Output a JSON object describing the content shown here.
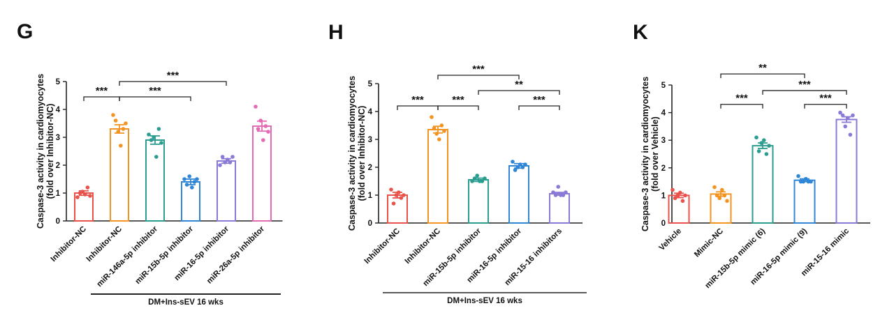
{
  "chart_data": [
    {
      "type": "bar",
      "panel": "G",
      "ylabel": [
        "Caspase-3 activity in cardiomyocytes",
        "(fold over Inhibitor-NC)"
      ],
      "ylim": [
        0,
        5
      ],
      "yticks": [
        "0",
        "1",
        "2",
        "3",
        "4",
        "5"
      ],
      "categories": [
        "Inhibitor-NC",
        "Inhibitor-NC",
        "miR-146a-5p inhibitor",
        "miR-15b-5p inhibitor",
        "miR-16-5p inhibitor",
        "miR-26a-5p inhibitor"
      ],
      "values": [
        1.0,
        3.3,
        2.9,
        1.4,
        2.15,
        3.4
      ],
      "errors": [
        0.08,
        0.15,
        0.15,
        0.1,
        0.08,
        0.18
      ],
      "colors": [
        "#e8524a",
        "#f39322",
        "#2a9d8f",
        "#2f86d6",
        "#8b79d8",
        "#e36bb3"
      ],
      "points": [
        [
          0.85,
          1.0,
          1.05,
          0.95,
          1.2,
          0.9
        ],
        [
          3.8,
          3.6,
          3.2,
          2.7,
          3.3,
          3.5
        ],
        [
          3.1,
          2.9,
          3.0,
          2.3,
          3.3,
          2.8
        ],
        [
          1.5,
          1.3,
          1.6,
          1.2,
          1.4,
          1.5
        ],
        [
          2.0,
          2.3,
          2.1,
          2.2,
          2.1,
          2.3
        ],
        [
          4.1,
          3.3,
          3.6,
          2.9,
          3.4,
          3.2
        ]
      ],
      "significance": [
        {
          "from": 0,
          "to": 1,
          "label": "***",
          "y": 4.45
        },
        {
          "from": 1,
          "to": 3,
          "label": "***",
          "y": 4.45
        },
        {
          "from": 1,
          "to": 4,
          "label": "***",
          "y": 5.0
        }
      ],
      "group_label": {
        "text": "DM+Ins-sEV 16 wks",
        "from": 1,
        "to": 5
      }
    },
    {
      "type": "bar",
      "panel": "H",
      "ylabel": [
        "Caspase-3 activity in cardiomyocytes",
        "(fold over Inhibitor-NC)"
      ],
      "ylim": [
        0,
        5
      ],
      "yticks": [
        "0",
        "1",
        "2",
        "3",
        "4",
        "5"
      ],
      "categories": [
        "Inhibitor-NC",
        "Inhibitor-NC",
        "miR-15b-5p inhibitor",
        "miR-16-5p inhibitor",
        "miR-15-16 inhibitors"
      ],
      "values": [
        1.0,
        3.35,
        1.55,
        2.05,
        1.05
      ],
      "errors": [
        0.1,
        0.12,
        0.06,
        0.08,
        0.05
      ],
      "colors": [
        "#e8524a",
        "#f39322",
        "#2a9d8f",
        "#2f86d6",
        "#8b79d8"
      ],
      "points": [
        [
          1.2,
          0.7,
          1.0,
          1.1,
          0.9,
          1.0
        ],
        [
          3.8,
          3.4,
          3.2,
          3.0,
          3.5,
          3.3
        ],
        [
          1.5,
          1.6,
          1.7,
          1.5,
          1.5,
          1.6
        ],
        [
          2.2,
          1.9,
          2.0,
          2.1,
          2.0,
          2.1
        ],
        [
          1.1,
          1.0,
          1.3,
          1.0,
          1.0,
          1.1
        ]
      ],
      "significance": [
        {
          "from": 0,
          "to": 1,
          "label": "***",
          "y": 4.2
        },
        {
          "from": 1,
          "to": 2,
          "label": "***",
          "y": 4.2
        },
        {
          "from": 3,
          "to": 4,
          "label": "***",
          "y": 4.2
        },
        {
          "from": 2,
          "to": 4,
          "label": "**",
          "y": 4.75
        },
        {
          "from": 1,
          "to": 3,
          "label": "***",
          "y": 5.3
        }
      ],
      "group_label": {
        "text": "DM+Ins-sEV 16 wks",
        "from": 1,
        "to": 4
      }
    },
    {
      "type": "bar",
      "panel": "K",
      "ylabel": [
        "Caspase-3 activity in cardiomyocytes",
        "(fold over Vehicle)"
      ],
      "ylim": [
        0,
        5
      ],
      "yticks": [
        "0",
        "1",
        "2",
        "3",
        "4",
        "5"
      ],
      "categories": [
        "Vehicle",
        "Mimic-NC",
        "miR-15b-5p mimic (6)",
        "miR-16-5p mimic (9)",
        "miR-15-16 mimic"
      ],
      "values": [
        1.0,
        1.05,
        2.8,
        1.55,
        3.75
      ],
      "errors": [
        0.08,
        0.08,
        0.1,
        0.05,
        0.1
      ],
      "colors": [
        "#e8524a",
        "#f39322",
        "#2a9d8f",
        "#2f86d6",
        "#8b79d8"
      ],
      "points": [
        [
          1.2,
          0.9,
          1.0,
          1.1,
          0.8,
          1.0
        ],
        [
          1.3,
          1.0,
          0.9,
          1.2,
          1.0,
          0.8
        ],
        [
          3.1,
          2.6,
          2.9,
          3.0,
          2.5,
          2.8
        ],
        [
          1.7,
          1.5,
          1.5,
          1.6,
          1.5,
          1.5
        ],
        [
          4.0,
          3.9,
          3.5,
          3.8,
          3.2,
          3.9
        ]
      ],
      "significance": [
        {
          "from": 1,
          "to": 2,
          "label": "***",
          "y": 4.3
        },
        {
          "from": 3,
          "to": 4,
          "label": "***",
          "y": 4.3
        },
        {
          "from": 2,
          "to": 4,
          "label": "***",
          "y": 4.8
        },
        {
          "from": 1,
          "to": 3,
          "label": "**",
          "y": 5.4
        }
      ],
      "group_label": null
    }
  ]
}
